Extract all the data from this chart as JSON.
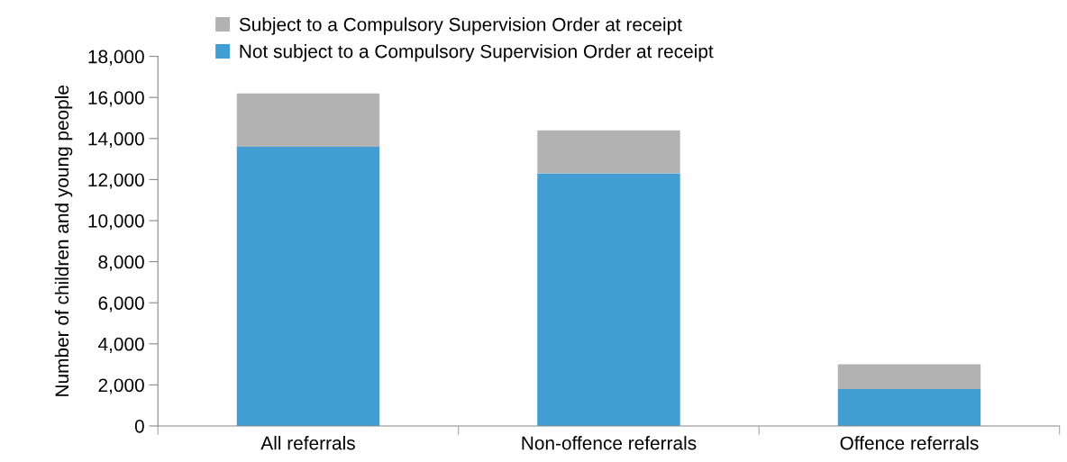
{
  "chart_data": {
    "type": "bar",
    "stacked": true,
    "ylabel": "Number of children and young people",
    "categories": [
      "All referrals",
      "Non-offence referrals",
      "Offence referrals"
    ],
    "series": [
      {
        "name": "Not subject to a Compulsory Supervision Order at receipt",
        "color": "#429ed2",
        "values": [
          13600,
          12300,
          1800
        ]
      },
      {
        "name": "Subject to a Compulsory Supervision Order at receipt",
        "color": "#b2b2b2",
        "values": [
          2600,
          2100,
          1200
        ]
      }
    ],
    "ylim": [
      0,
      18000
    ],
    "yticks": [
      {
        "value": 0,
        "label": "0"
      },
      {
        "value": 2000,
        "label": "2,000"
      },
      {
        "value": 4000,
        "label": "4,000"
      },
      {
        "value": 6000,
        "label": "6,000"
      },
      {
        "value": 8000,
        "label": "8,000"
      },
      {
        "value": 10000,
        "label": "10,000"
      },
      {
        "value": 12000,
        "label": "12,000"
      },
      {
        "value": 14000,
        "label": "14,000"
      },
      {
        "value": 16000,
        "label": "16,000"
      },
      {
        "value": 18000,
        "label": "18,000"
      }
    ],
    "grid": false,
    "legend": "top left"
  }
}
